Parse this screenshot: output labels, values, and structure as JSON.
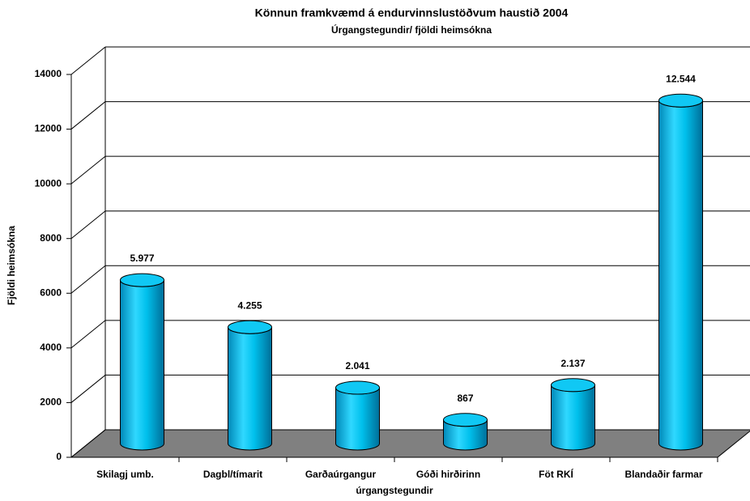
{
  "chart_data": {
    "type": "bar3d",
    "title": "Könnun framkvæmd á endurvinnslustöðvum haustið 2004",
    "subtitle": "Úrgangstegundir/ fjöldi heimsókna",
    "x_label": "úrgangstegundir",
    "y_label": "Fjöldi heimsókna",
    "categories": [
      "Skilagj umb.",
      "Dagbl/tímarit",
      "Garðaúrgangur",
      "Góði hirðirinn",
      "Föt RKÍ",
      "Blandaðir farmar"
    ],
    "values": [
      5977,
      4255,
      2041,
      867,
      2137,
      12544
    ],
    "value_labels": [
      "5.977",
      "4.255",
      "2.041",
      "867",
      "2.137",
      "12.544"
    ],
    "color": "#00c8f0",
    "ylim": [
      0,
      14000
    ],
    "yticks": [
      0,
      2000,
      4000,
      6000,
      8000,
      10000,
      12000,
      14000
    ],
    "grid": true
  }
}
